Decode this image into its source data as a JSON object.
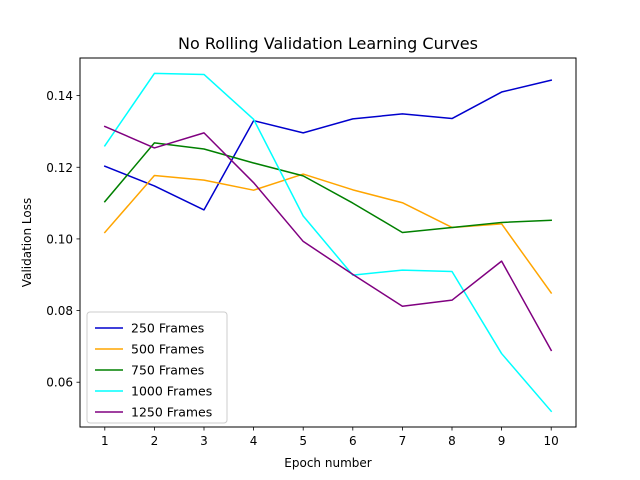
{
  "chart_data": {
    "type": "line",
    "title": "No Rolling Validation Learning Curves",
    "xlabel": "Epoch number",
    "ylabel": "Validation Loss",
    "x": [
      1,
      2,
      3,
      4,
      5,
      6,
      7,
      8,
      9,
      10
    ],
    "x_ticks": [
      "1",
      "2",
      "3",
      "4",
      "5",
      "6",
      "7",
      "8",
      "9",
      "10"
    ],
    "y_ticks": [
      "0.06",
      "0.08",
      "0.10",
      "0.12",
      "0.14"
    ],
    "y_tick_values": [
      0.06,
      0.08,
      0.1,
      0.12,
      0.14
    ],
    "xlim": [
      0.5,
      10.5
    ],
    "ylim": [
      0.0475,
      0.1505
    ],
    "grid": false,
    "legend_position": "lower-left",
    "series": [
      {
        "name": "250 Frames",
        "color": "#0000cd",
        "values": [
          0.1203,
          0.1148,
          0.1081,
          0.133,
          0.1296,
          0.1335,
          0.1349,
          0.1336,
          0.141,
          0.1443
        ]
      },
      {
        "name": "500 Frames",
        "color": "#ffa500",
        "values": [
          0.1018,
          0.1177,
          0.1164,
          0.1136,
          0.1181,
          0.1137,
          0.1101,
          0.1032,
          0.1042,
          0.0849
        ]
      },
      {
        "name": "750 Frames",
        "color": "#008000",
        "values": [
          0.1104,
          0.1268,
          0.1251,
          0.1212,
          0.1176,
          0.11,
          0.1018,
          0.1032,
          0.1046,
          0.1052
        ]
      },
      {
        "name": "1000 Frames",
        "color": "#00ffff",
        "values": [
          0.126,
          0.1462,
          0.1459,
          0.1334,
          0.1064,
          0.0899,
          0.0913,
          0.0909,
          0.068,
          0.0519
        ]
      },
      {
        "name": "1250 Frames",
        "color": "#800080",
        "values": [
          0.1314,
          0.1254,
          0.1296,
          0.1157,
          0.0993,
          0.0901,
          0.0812,
          0.0829,
          0.0938,
          0.0689
        ]
      }
    ]
  }
}
